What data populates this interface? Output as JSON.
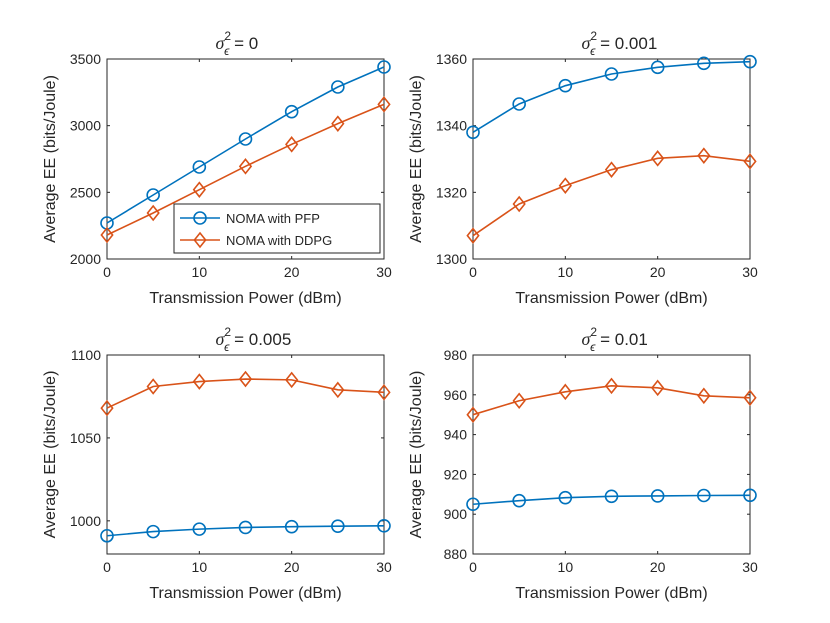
{
  "figure": {
    "legend": {
      "entries": [
        "NOMA with PFP",
        "NOMA with DDPG"
      ],
      "location": "bottom-right of top-left panel"
    }
  },
  "chart_data": [
    {
      "type": "line",
      "title_prefix": "σ",
      "title_superscript": "2",
      "title_subscript": "ϵ",
      "title_suffix": " = 0",
      "xlabel": "Transmission Power (dBm)",
      "ylabel": "Average EE (bits/Joule)",
      "x": [
        0,
        5,
        10,
        15,
        20,
        25,
        30
      ],
      "xlim": [
        0,
        30
      ],
      "ylim": [
        2000,
        3500
      ],
      "xticks": [
        0,
        10,
        20,
        30
      ],
      "yticks": [
        2000,
        2500,
        3000,
        3500
      ],
      "legend": true,
      "series": [
        {
          "name": "NOMA with PFP",
          "color": "#0072BD",
          "marker": "circle",
          "values": [
            2270,
            2480,
            2690,
            2900,
            3105,
            3290,
            3440
          ]
        },
        {
          "name": "NOMA with DDPG",
          "color": "#D95319",
          "marker": "diamond",
          "values": [
            2180,
            2345,
            2520,
            2695,
            2860,
            3015,
            3160
          ]
        }
      ]
    },
    {
      "type": "line",
      "title_prefix": "σ",
      "title_superscript": "2",
      "title_subscript": "ϵ",
      "title_suffix": " = 0.001",
      "xlabel": "Transmission Power (dBm)",
      "ylabel": "Average EE (bits/Joule)",
      "x": [
        0,
        5,
        10,
        15,
        20,
        25,
        30
      ],
      "xlim": [
        0,
        30
      ],
      "ylim": [
        1300,
        1360
      ],
      "xticks": [
        0,
        10,
        20,
        30
      ],
      "yticks": [
        1300,
        1320,
        1340,
        1360
      ],
      "legend": false,
      "series": [
        {
          "name": "NOMA with PFP",
          "color": "#0072BD",
          "marker": "circle",
          "values": [
            1338,
            1346.5,
            1352,
            1355.5,
            1357.5,
            1358.7,
            1359.2
          ]
        },
        {
          "name": "NOMA with DDPG",
          "color": "#D95319",
          "marker": "diamond",
          "values": [
            1307,
            1316.5,
            1322,
            1326.8,
            1330.2,
            1331,
            1329.3
          ]
        }
      ]
    },
    {
      "type": "line",
      "title_prefix": "σ",
      "title_superscript": "2",
      "title_subscript": "ϵ",
      "title_suffix": " = 0.005",
      "xlabel": "Transmission Power (dBm)",
      "ylabel": "Average EE (bits/Joule)",
      "x": [
        0,
        5,
        10,
        15,
        20,
        25,
        30
      ],
      "xlim": [
        0,
        30
      ],
      "ylim": [
        980,
        1100
      ],
      "xticks": [
        0,
        10,
        20,
        30
      ],
      "yticks": [
        1000,
        1050,
        1100
      ],
      "legend": false,
      "series": [
        {
          "name": "NOMA with PFP",
          "color": "#0072BD",
          "marker": "circle",
          "values": [
            991,
            993.5,
            995,
            996,
            996.5,
            996.8,
            997
          ]
        },
        {
          "name": "NOMA with DDPG",
          "color": "#D95319",
          "marker": "diamond",
          "values": [
            1068,
            1081,
            1084,
            1085.5,
            1085,
            1079,
            1077.5
          ]
        }
      ]
    },
    {
      "type": "line",
      "title_prefix": "σ",
      "title_superscript": "2",
      "title_subscript": "ϵ",
      "title_suffix": " = 0.01",
      "xlabel": "Transmission Power (dBm)",
      "ylabel": "Average EE (bits/Joule)",
      "x": [
        0,
        5,
        10,
        15,
        20,
        25,
        30
      ],
      "xlim": [
        0,
        30
      ],
      "ylim": [
        880,
        980
      ],
      "xticks": [
        0,
        10,
        20,
        30
      ],
      "yticks": [
        880,
        900,
        920,
        940,
        960,
        980
      ],
      "legend": false,
      "series": [
        {
          "name": "NOMA with PFP",
          "color": "#0072BD",
          "marker": "circle",
          "values": [
            905,
            906.8,
            908.3,
            909,
            909.2,
            909.4,
            909.5
          ]
        },
        {
          "name": "NOMA with DDPG",
          "color": "#D95319",
          "marker": "diamond",
          "values": [
            950,
            957,
            961.5,
            964.5,
            963.5,
            959.5,
            958.5
          ]
        }
      ]
    }
  ]
}
